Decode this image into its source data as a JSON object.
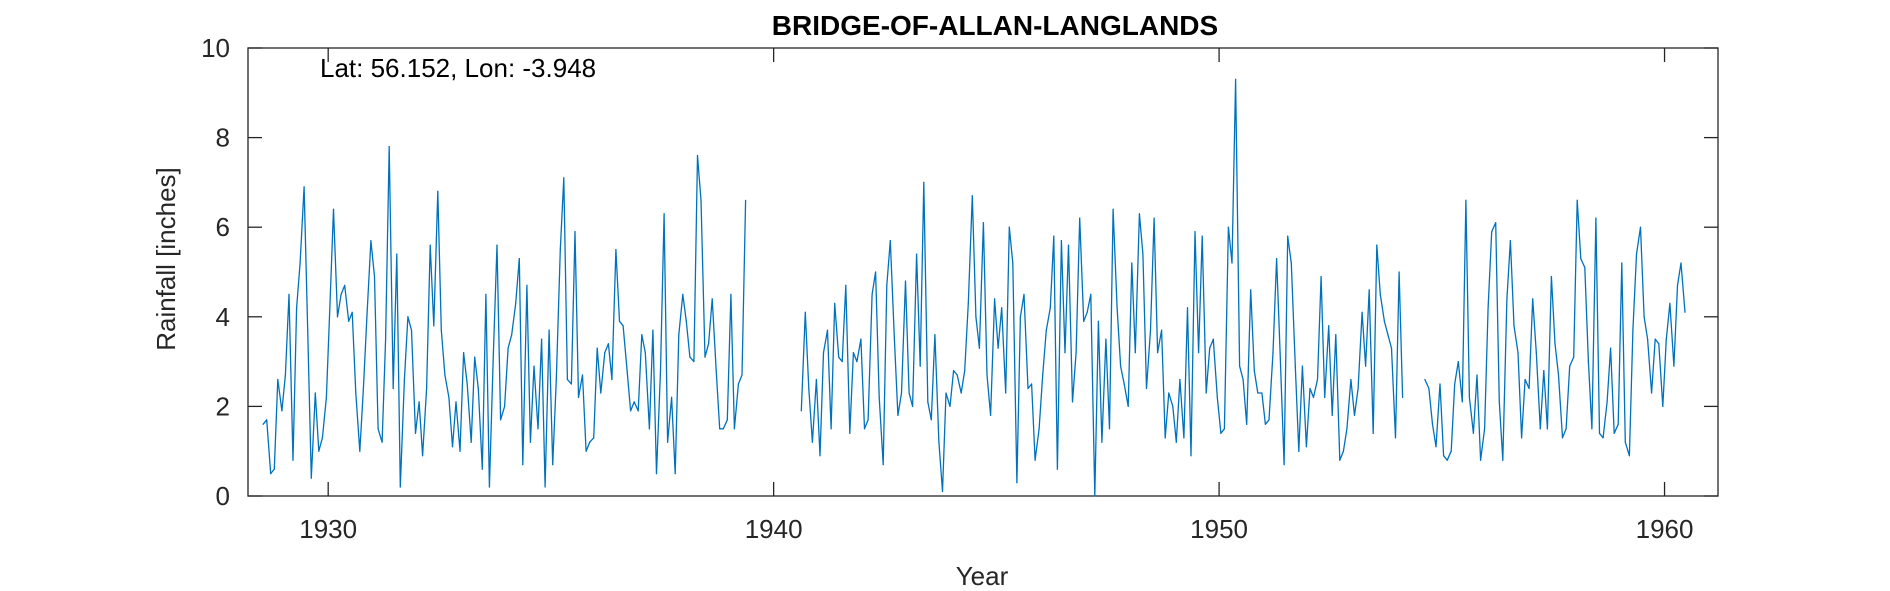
{
  "chart_data": {
    "type": "line",
    "title": "BRIDGE-OF-ALLAN-LANGLANDS",
    "annotation": "Lat: 56.152, Lon: -3.948",
    "xlabel": "Year",
    "ylabel": "Rainfall [inches]",
    "xlim": [
      1928.2,
      1961.2
    ],
    "ylim": [
      0,
      10
    ],
    "xticks": [
      1930,
      1940,
      1950,
      1960
    ],
    "yticks": [
      0,
      2,
      4,
      6,
      8,
      10
    ],
    "grid": false,
    "colors": {
      "line": "#0072BD",
      "axes": "#262626"
    },
    "series": [
      {
        "segments": [
          {
            "x": [
              1928.54,
              1928.62,
              1928.71,
              1928.79,
              1928.87,
              1928.96,
              1929.04,
              1929.12,
              1929.21,
              1929.29,
              1929.37,
              1929.46,
              1929.54,
              1929.62,
              1929.71,
              1929.79,
              1929.87,
              1929.96,
              1930.04,
              1930.12,
              1930.21,
              1930.29,
              1930.37,
              1930.46,
              1930.54,
              1930.62,
              1930.71,
              1930.79,
              1930.87,
              1930.96,
              1931.04,
              1931.12,
              1931.21,
              1931.29,
              1931.37,
              1931.46,
              1931.54,
              1931.62,
              1931.71,
              1931.79,
              1931.87,
              1931.96,
              1932.04,
              1932.12,
              1932.21,
              1932.29,
              1932.37,
              1932.46,
              1932.54,
              1932.62,
              1932.71,
              1932.79,
              1932.87,
              1932.96,
              1933.04,
              1933.12,
              1933.21,
              1933.29,
              1933.37,
              1933.46,
              1933.54,
              1933.62,
              1933.71,
              1933.79,
              1933.87,
              1933.96,
              1934.04,
              1934.12,
              1934.21,
              1934.29,
              1934.37,
              1934.46,
              1934.54,
              1934.62,
              1934.71,
              1934.79,
              1934.87,
              1934.96,
              1935.04,
              1935.12,
              1935.21,
              1935.29,
              1935.37,
              1935.46,
              1935.54,
              1935.62,
              1935.71,
              1935.79,
              1935.87,
              1935.96,
              1936.04,
              1936.12,
              1936.21,
              1936.29,
              1936.37,
              1936.46,
              1936.54,
              1936.62,
              1936.71,
              1936.79,
              1936.87,
              1936.96,
              1937.04,
              1937.12,
              1937.21,
              1937.29,
              1937.37,
              1937.46,
              1937.54,
              1937.62,
              1937.71,
              1937.79,
              1937.87,
              1937.96,
              1938.04,
              1938.12,
              1938.21,
              1938.29,
              1938.37,
              1938.46,
              1938.54,
              1938.62,
              1938.71,
              1938.79,
              1938.87,
              1938.96,
              1939.04,
              1939.12,
              1939.21,
              1939.29,
              1939.37
            ],
            "y": [
              1.6,
              1.7,
              0.5,
              0.6,
              2.6,
              1.9,
              2.7,
              4.5,
              0.8,
              4.2,
              5.2,
              6.9,
              3.7,
              0.4,
              2.3,
              1.0,
              1.3,
              2.2,
              4.3,
              6.4,
              4.0,
              4.5,
              4.7,
              3.9,
              4.1,
              2.3,
              1.0,
              2.4,
              4.0,
              5.7,
              4.9,
              1.5,
              1.2,
              3.5,
              7.8,
              2.4,
              5.4,
              0.2,
              2.6,
              4.0,
              3.7,
              1.4,
              2.1,
              0.9,
              2.4,
              5.6,
              3.8,
              6.8,
              3.7,
              2.7,
              2.2,
              1.1,
              2.1,
              1.0,
              3.2,
              2.5,
              1.2,
              3.1,
              2.4,
              0.6,
              4.5,
              0.2,
              3.2,
              5.6,
              1.7,
              2.0,
              3.3,
              3.6,
              4.3,
              5.3,
              0.7,
              4.7,
              1.2,
              2.9,
              1.5,
              3.5,
              0.2,
              3.7,
              0.7,
              2.6,
              5.5,
              7.1,
              2.6,
              2.5,
              5.9,
              2.2,
              2.7,
              1.0,
              1.2,
              1.3,
              3.3,
              2.3,
              3.2,
              3.4,
              2.6,
              5.5,
              3.9,
              3.8,
              2.8,
              1.9,
              2.1,
              1.9,
              3.6,
              3.2,
              1.5,
              3.7,
              0.5,
              2.8,
              6.3,
              1.2,
              2.2,
              0.5,
              3.6,
              4.5,
              3.9,
              3.1,
              3.0,
              7.6,
              6.6,
              3.1,
              3.4,
              4.4,
              2.8,
              1.5,
              1.5,
              1.7,
              4.5,
              1.5,
              2.5,
              2.7,
              6.6
            ]
          },
          {
            "x": [
              1940.62,
              1940.71,
              1940.79,
              1940.87,
              1940.96,
              1941.04,
              1941.12,
              1941.21,
              1941.29,
              1941.37,
              1941.46,
              1941.54,
              1941.62,
              1941.71,
              1941.79,
              1941.87,
              1941.96,
              1942.04,
              1942.12,
              1942.21,
              1942.29,
              1942.37,
              1942.46,
              1942.54,
              1942.62,
              1942.71,
              1942.79,
              1942.87,
              1942.96,
              1943.04,
              1943.12,
              1943.21,
              1943.29,
              1943.37,
              1943.46,
              1943.54,
              1943.62,
              1943.71,
              1943.79,
              1943.87,
              1943.96,
              1944.04,
              1944.12,
              1944.21,
              1944.29,
              1944.37,
              1944.46,
              1944.54,
              1944.62,
              1944.71,
              1944.79,
              1944.87,
              1944.96,
              1945.04,
              1945.12,
              1945.21,
              1945.29,
              1945.37,
              1945.46,
              1945.54,
              1945.62,
              1945.71,
              1945.79,
              1945.87,
              1945.96,
              1946.04,
              1946.12,
              1946.21,
              1946.29,
              1946.37,
              1946.46,
              1946.54,
              1946.62,
              1946.71,
              1946.79,
              1946.87,
              1946.96,
              1947.04,
              1947.12,
              1947.21,
              1947.29,
              1947.37,
              1947.46,
              1947.54,
              1947.62,
              1947.71,
              1947.79,
              1947.87,
              1947.96,
              1948.04,
              1948.12,
              1948.21,
              1948.29,
              1948.37,
              1948.46,
              1948.54,
              1948.62,
              1948.71,
              1948.79,
              1948.87,
              1948.96,
              1949.04,
              1949.12,
              1949.21,
              1949.29,
              1949.37,
              1949.46,
              1949.54,
              1949.62,
              1949.71,
              1949.79,
              1949.87,
              1949.96,
              1950.04,
              1950.12,
              1950.21,
              1950.29,
              1950.37,
              1950.46,
              1950.54,
              1950.62,
              1950.71,
              1950.79,
              1950.87,
              1950.96,
              1951.04,
              1951.12,
              1951.21,
              1951.29,
              1951.37,
              1951.46,
              1951.54,
              1951.62,
              1951.71,
              1951.79,
              1951.87,
              1951.96,
              1952.04,
              1952.12,
              1952.21,
              1952.29,
              1952.37,
              1952.46,
              1952.54,
              1952.62,
              1952.71,
              1952.79,
              1952.87,
              1952.96,
              1953.04,
              1953.12,
              1953.21,
              1953.29,
              1953.37,
              1953.46,
              1953.54,
              1953.62,
              1953.71,
              1953.79,
              1953.87,
              1953.96,
              1954.04,
              1954.12
            ],
            "y": [
              1.9,
              4.1,
              2.4,
              1.2,
              2.6,
              0.9,
              3.2,
              3.7,
              1.5,
              4.3,
              3.1,
              3.0,
              4.7,
              1.4,
              3.2,
              3.0,
              3.5,
              1.5,
              1.7,
              4.5,
              5.0,
              2.2,
              0.7,
              4.7,
              5.7,
              3.5,
              1.8,
              2.3,
              4.8,
              2.3,
              2.0,
              5.4,
              2.9,
              7.0,
              2.1,
              1.7,
              3.6,
              1.2,
              0.1,
              2.3,
              2.0,
              2.8,
              2.7,
              2.3,
              2.8,
              4.3,
              6.7,
              4.0,
              3.3,
              6.1,
              2.7,
              1.8,
              4.4,
              3.3,
              4.2,
              2.3,
              6.0,
              5.2,
              0.3,
              4.0,
              4.5,
              2.4,
              2.5,
              0.8,
              1.5,
              2.7,
              3.7,
              4.2,
              5.8,
              0.6,
              5.7,
              3.2,
              5.6,
              2.1,
              3.2,
              6.2,
              3.9,
              4.1,
              4.5,
              0.0,
              3.9,
              1.2,
              3.5,
              1.5,
              6.4,
              4.2,
              2.9,
              2.5,
              2.0,
              5.2,
              3.2,
              6.3,
              5.4,
              2.4,
              3.7,
              6.2,
              3.2,
              3.7,
              1.3,
              2.3,
              2.0,
              1.2,
              2.6,
              1.3,
              4.2,
              0.9,
              5.9,
              3.2,
              5.8,
              2.3,
              3.3,
              3.5,
              2.2,
              1.4,
              1.5,
              6.0,
              5.2,
              9.3,
              2.9,
              2.6,
              1.6,
              4.6,
              2.8,
              2.3,
              2.3,
              1.6,
              1.7,
              3.2,
              5.3,
              3.2,
              0.7,
              5.8,
              5.2,
              2.9,
              1.0,
              2.9,
              1.1,
              2.4,
              2.2,
              2.6,
              4.9,
              2.2,
              3.8,
              1.8,
              3.6,
              0.8,
              1.0,
              1.5,
              2.6,
              1.8,
              2.4,
              4.1,
              2.9,
              4.6,
              1.4,
              5.6,
              4.5,
              3.9,
              3.6,
              3.3,
              1.3,
              5.0,
              2.2
            ]
          },
          {
            "x": [
              1954.62,
              1954.71,
              1954.79,
              1954.87,
              1954.96,
              1955.04,
              1955.12,
              1955.21,
              1955.29,
              1955.37,
              1955.46,
              1955.54,
              1955.62,
              1955.71,
              1955.79,
              1955.87,
              1955.96,
              1956.04,
              1956.12,
              1956.21,
              1956.29,
              1956.37,
              1956.46,
              1956.54,
              1956.62,
              1956.71,
              1956.79,
              1956.87,
              1956.96,
              1957.04,
              1957.12,
              1957.21,
              1957.29,
              1957.37,
              1957.46,
              1957.54,
              1957.62,
              1957.71,
              1957.79,
              1957.87,
              1957.96,
              1958.04,
              1958.12,
              1958.21,
              1958.29,
              1958.37,
              1958.46,
              1958.54,
              1958.62,
              1958.71,
              1958.79,
              1958.87,
              1958.96,
              1959.04,
              1959.12,
              1959.21,
              1959.29,
              1959.37,
              1959.46,
              1959.54,
              1959.62,
              1959.71,
              1959.79,
              1959.87,
              1959.96,
              1960.04,
              1960.12,
              1960.21,
              1960.29,
              1960.37,
              1960.46
            ],
            "y": [
              2.6,
              2.4,
              1.6,
              1.1,
              2.5,
              0.9,
              0.8,
              1.0,
              2.5,
              3.0,
              2.1,
              6.6,
              2.2,
              1.4,
              2.7,
              0.8,
              1.5,
              4.2,
              5.9,
              6.1,
              2.1,
              0.8,
              4.4,
              5.7,
              3.8,
              3.2,
              1.3,
              2.6,
              2.4,
              4.4,
              3.2,
              1.5,
              2.8,
              1.5,
              4.9,
              3.4,
              2.7,
              1.3,
              1.5,
              2.9,
              3.1,
              6.6,
              5.3,
              5.1,
              3.0,
              1.5,
              6.2,
              1.4,
              1.3,
              2.1,
              3.3,
              1.4,
              1.6,
              5.2,
              1.2,
              0.9,
              3.7,
              5.4,
              6.0,
              4.0,
              3.5,
              2.3,
              3.5,
              3.4,
              2.0,
              3.5,
              4.3,
              2.9,
              4.7,
              5.2,
              4.1
            ]
          }
        ]
      }
    ]
  }
}
